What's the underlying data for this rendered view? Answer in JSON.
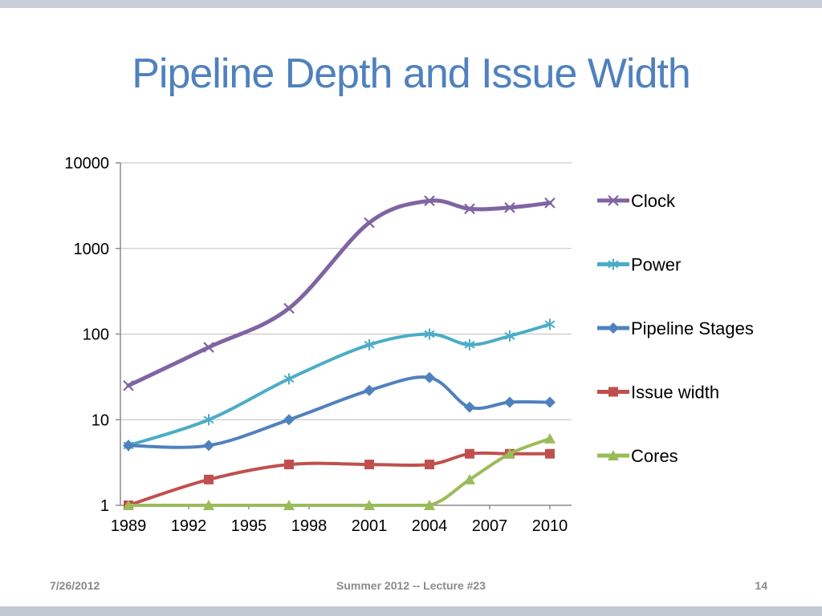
{
  "slide": {
    "title": "Pipeline Depth and Issue Width",
    "footer": {
      "date": "7/26/2012",
      "center": "Summer 2012 -- Lecture #23",
      "page": "14"
    }
  },
  "colors": {
    "title": "#4F81BD",
    "footer_text": "#8A8A8A",
    "grid": "#BFBFBF",
    "axis": "#8C8C8C",
    "tick_label": "#000000",
    "legend_label": "#000000"
  },
  "chart_data": {
    "type": "line",
    "title": "",
    "xlabel": "",
    "ylabel": "",
    "x": [
      1989,
      1993,
      1997,
      2001,
      2004,
      2006,
      2008,
      2010
    ],
    "x_ticks": [
      1989,
      1992,
      1995,
      1998,
      2001,
      2004,
      2007,
      2010
    ],
    "x_tick_labels": [
      "1989",
      "1992",
      "1995",
      "1998",
      "2001",
      "2004",
      "2007",
      "2010"
    ],
    "y_scale": "log",
    "ylim": [
      1,
      10000
    ],
    "y_ticks": [
      1,
      10,
      100,
      1000,
      10000
    ],
    "y_tick_labels": [
      "1",
      "10",
      "100",
      "1000",
      "10000"
    ],
    "grid": "horizontal",
    "legend_position": "right",
    "series": [
      {
        "name": "Clock",
        "color": "#8064A2",
        "marker": "x",
        "line_width": 5,
        "values": [
          25,
          70,
          200,
          2000,
          3600,
          2900,
          3000,
          3400
        ]
      },
      {
        "name": "Power",
        "color": "#4BACC6",
        "marker": "asterisk",
        "line_width": 4,
        "values": [
          5,
          10,
          30,
          75,
          100,
          75,
          95,
          130
        ]
      },
      {
        "name": "Pipeline Stages",
        "color": "#4F81BD",
        "marker": "diamond",
        "line_width": 4,
        "values": [
          5,
          5,
          10,
          22,
          31,
          14,
          16,
          16
        ]
      },
      {
        "name": "Issue width",
        "color": "#C0504D",
        "marker": "square",
        "line_width": 4,
        "values": [
          1,
          2,
          3,
          3,
          3,
          4,
          4,
          4
        ]
      },
      {
        "name": "Cores",
        "color": "#9BBB59",
        "marker": "triangle",
        "line_width": 4,
        "values": [
          1,
          1,
          1,
          1,
          1,
          2,
          4,
          6
        ]
      }
    ]
  }
}
